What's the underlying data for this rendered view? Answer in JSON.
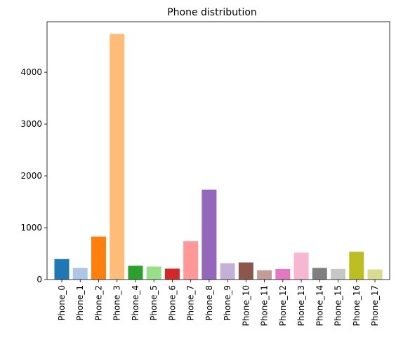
{
  "chart_data": {
    "type": "bar",
    "title": "Phone distribution",
    "xlabel": "",
    "ylabel": "",
    "ylim": [
      0,
      4975
    ],
    "yticks": [
      0,
      1000,
      2000,
      3000,
      4000
    ],
    "grid": false,
    "categories": [
      "Phone_0",
      "Phone_1",
      "Phone_2",
      "Phone_3",
      "Phone_4",
      "Phone_5",
      "Phone_6",
      "Phone_7",
      "Phone_8",
      "Phone_9",
      "Phone_10",
      "Phone_11",
      "Phone_12",
      "Phone_13",
      "Phone_14",
      "Phone_15",
      "Phone_16",
      "Phone_17"
    ],
    "values": [
      395,
      225,
      830,
      4740,
      265,
      250,
      210,
      740,
      1735,
      315,
      330,
      180,
      205,
      520,
      225,
      205,
      535,
      195
    ],
    "colors": [
      "#1f77b4",
      "#aec7e8",
      "#ff7f0e",
      "#ffbb78",
      "#2ca02c",
      "#98df8a",
      "#d62728",
      "#ff9896",
      "#9467bd",
      "#c5b0d5",
      "#8c564b",
      "#c49c94",
      "#e377c2",
      "#f7b6d2",
      "#7f7f7f",
      "#c7c7c7",
      "#bcbd22",
      "#dbdb8d"
    ]
  }
}
